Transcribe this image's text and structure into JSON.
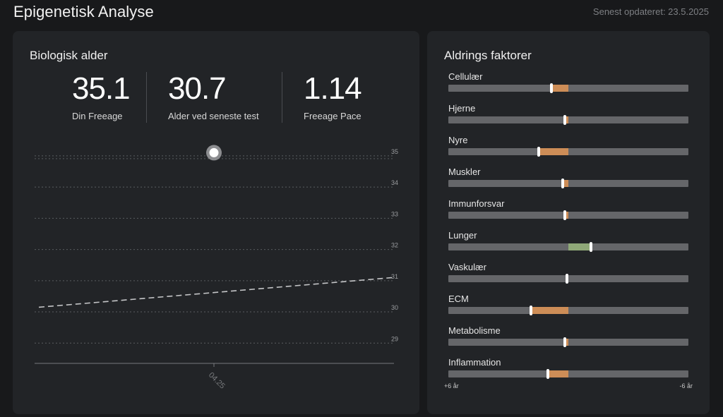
{
  "header": {
    "title": "Epigenetisk Analyse",
    "updated": "Senest opdateret: 23.5.2025"
  },
  "biological_age": {
    "title": "Biologisk alder",
    "stats": [
      {
        "value": "35.1",
        "label": "Din Freeage"
      },
      {
        "value": "30.7",
        "label": "Alder ved seneste test"
      },
      {
        "value": "1.14",
        "label": "Freeage Pace"
      }
    ]
  },
  "chart_data": {
    "type": "line",
    "yticks": [
      35,
      34,
      33,
      32,
      31,
      30,
      29
    ],
    "ylim": [
      28.6,
      35.2
    ],
    "xticks": [
      "04.25"
    ],
    "point": {
      "x": "04.25",
      "y": 35.1
    },
    "trend": {
      "start": 30.15,
      "end": 31.1
    },
    "grid": true
  },
  "aging_factors": {
    "title": "Aldrings faktorer",
    "colors": {
      "older": "#cd8d57",
      "younger": "#8fa878",
      "track": "#656669"
    },
    "scale": {
      "left": "+6 år",
      "right": "-6 år"
    },
    "items": [
      {
        "label": "Cellulær",
        "value": 0.43
      },
      {
        "label": "Hjerne",
        "value": 0.485
      },
      {
        "label": "Nyre",
        "value": 0.375
      },
      {
        "label": "Muskler",
        "value": 0.475
      },
      {
        "label": "Immunforsvar",
        "value": 0.485
      },
      {
        "label": "Lunger",
        "value": 0.595
      },
      {
        "label": "Vaskulær",
        "value": 0.495
      },
      {
        "label": "ECM",
        "value": 0.345
      },
      {
        "label": "Metabolisme",
        "value": 0.485
      },
      {
        "label": "Inflammation",
        "value": 0.415
      }
    ]
  }
}
